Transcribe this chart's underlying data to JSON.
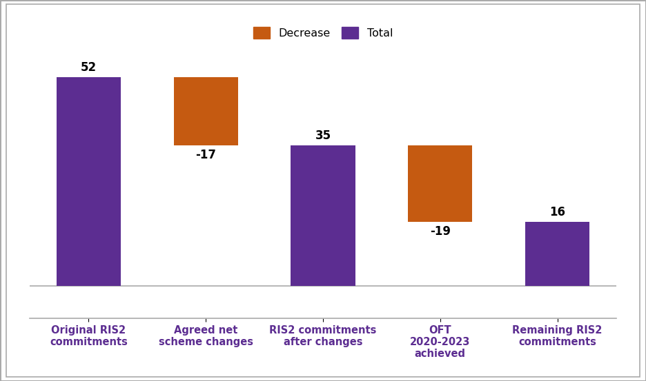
{
  "categories": [
    "Original RIS2\ncommitments",
    "Agreed net\nscheme changes",
    "RIS2 commitments\nafter changes",
    "OFT\n2020-2023\nachieved",
    "Remaining RIS2\ncommitments"
  ],
  "values": [
    52,
    17,
    35,
    19,
    16
  ],
  "bar_bottoms": [
    0,
    35,
    0,
    16,
    0
  ],
  "bar_types": [
    "total",
    "decrease",
    "total",
    "decrease",
    "total"
  ],
  "labels": [
    "52",
    "-17",
    "35",
    "-19",
    "16"
  ],
  "label_above": [
    true,
    false,
    true,
    false,
    true
  ],
  "color_total": "#5c2d91",
  "color_decrease": "#c55a11",
  "legend_labels": [
    "Decrease",
    "Total"
  ],
  "label_fontsize": 12,
  "tick_fontsize": 10.5,
  "figsize": [
    9.36,
    5.53
  ],
  "dpi": 100,
  "background_color": "#ffffff",
  "ylim_min": -8,
  "ylim_max": 62,
  "border_color": "#aaaaaa"
}
